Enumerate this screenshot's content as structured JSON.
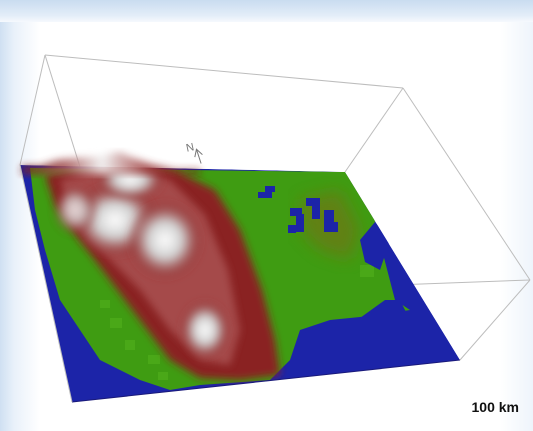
{
  "north_label": "N",
  "scale": {
    "label": "100 km"
  },
  "colors": {
    "water": "#1c24a8",
    "lowland": "#3c9a10",
    "midland": "#8a1f1f",
    "highland": "#e8e8e8",
    "box_edge": "#b8b8b8"
  }
}
